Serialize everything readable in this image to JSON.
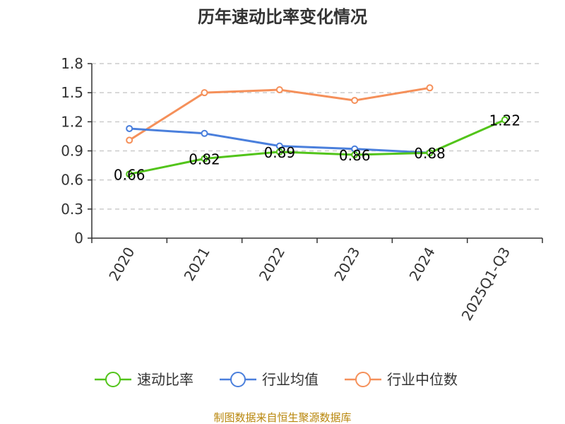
{
  "chart_data": {
    "type": "line",
    "title": "历年速动比率变化情况",
    "xlabel": "",
    "ylabel": "",
    "categories": [
      "2020",
      "2021",
      "2022",
      "2023",
      "2024",
      "2025Q1-Q3"
    ],
    "yticks": [
      "0",
      "0.3",
      "0.6",
      "0.9",
      "1.2",
      "1.5",
      "1.8"
    ],
    "ylim": [
      0,
      1.8
    ],
    "grid": true,
    "legend_position": "bottom",
    "series": [
      {
        "name": "速动比率",
        "color": "#52c41a",
        "values": [
          0.66,
          0.82,
          0.89,
          0.86,
          0.88,
          1.22
        ],
        "labels": [
          "0.66",
          "0.82",
          "0.89",
          "0.86",
          "0.88",
          "1.22"
        ]
      },
      {
        "name": "行业均值",
        "color": "#4a7fdc",
        "values": [
          1.13,
          1.08,
          0.95,
          0.92,
          0.88,
          null
        ]
      },
      {
        "name": "行业中位数",
        "color": "#f5905a",
        "values": [
          1.01,
          1.5,
          1.53,
          1.42,
          1.55,
          null
        ]
      }
    ]
  },
  "source": "制图数据来自恒生聚源数据库"
}
